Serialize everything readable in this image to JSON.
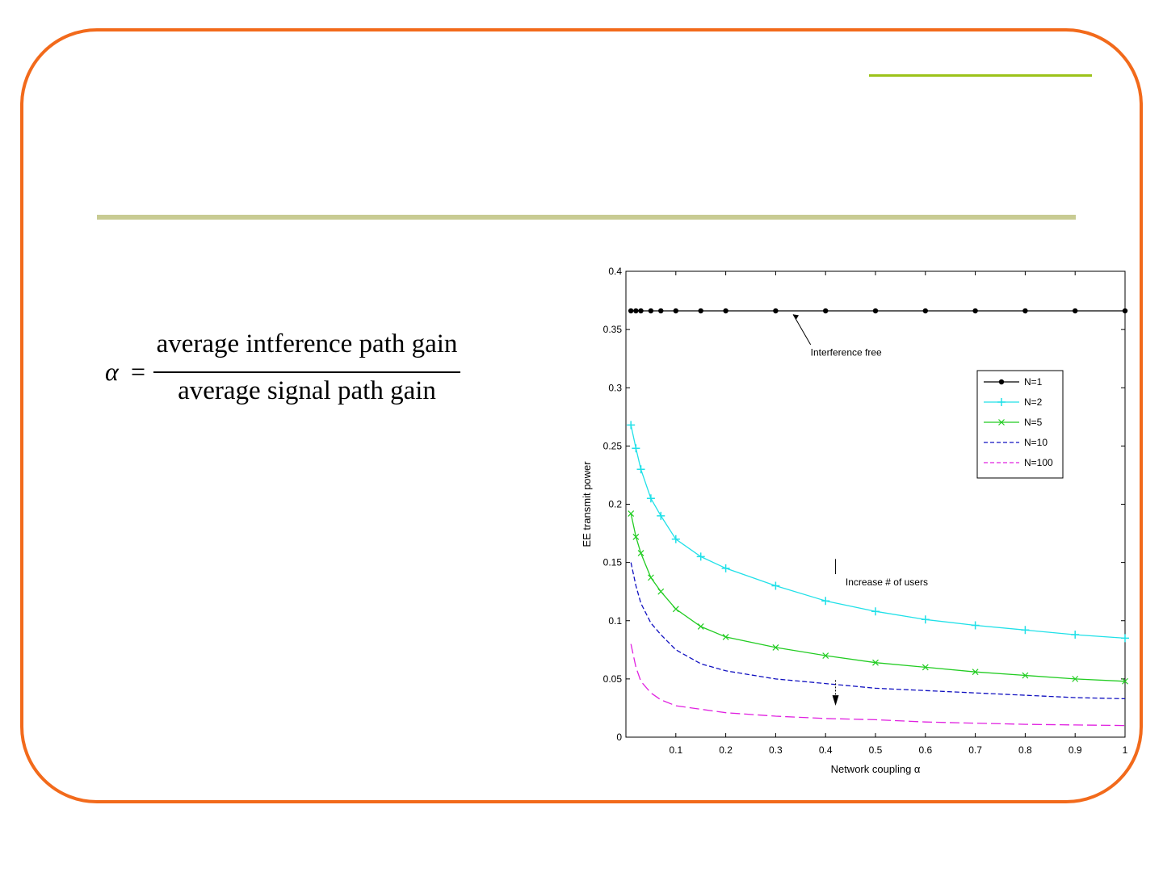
{
  "slide": {
    "frame_color": "#f26a1b",
    "accent_color": "#9cc31a",
    "rule_color": "#c8cb93"
  },
  "formula": {
    "lhs": "α",
    "equals": "=",
    "numerator": "average intference path gain",
    "denominator": "average signal path gain"
  },
  "chart_data": {
    "type": "line",
    "xlabel": "Network coupling α",
    "ylabel": "EE transmit power",
    "xlim": [
      0,
      1
    ],
    "ylim": [
      0,
      0.4
    ],
    "xticks": [
      0.1,
      0.2,
      0.3,
      0.4,
      0.5,
      0.6,
      0.7,
      0.8,
      0.9,
      1
    ],
    "xtick_labels": [
      "0.1",
      "0.2",
      "0.3",
      "0.4",
      "0.5",
      "0.6",
      "0.7",
      "0.8",
      "0.9",
      "1"
    ],
    "yticks": [
      0,
      0.05,
      0.1,
      0.15,
      0.2,
      0.25,
      0.3,
      0.35,
      0.4
    ],
    "ytick_labels": [
      "0",
      "0.05",
      "0.1",
      "0.15",
      "0.2",
      "0.25",
      "0.3",
      "0.35",
      "0.4"
    ],
    "legend_position": "top-right",
    "grid": false,
    "x": [
      0.01,
      0.02,
      0.03,
      0.05,
      0.07,
      0.1,
      0.15,
      0.2,
      0.3,
      0.4,
      0.5,
      0.6,
      0.7,
      0.8,
      0.9,
      1.0
    ],
    "series": [
      {
        "name": "N=1",
        "color": "#000000",
        "marker": "dot",
        "values": [
          0.366,
          0.366,
          0.366,
          0.366,
          0.366,
          0.366,
          0.366,
          0.366,
          0.366,
          0.366,
          0.366,
          0.366,
          0.366,
          0.366,
          0.366,
          0.366
        ]
      },
      {
        "name": "N=2",
        "color": "#20e0e8",
        "marker": "plus",
        "values": [
          0.268,
          0.248,
          0.23,
          0.205,
          0.19,
          0.17,
          0.155,
          0.145,
          0.13,
          0.117,
          0.108,
          0.101,
          0.096,
          0.092,
          0.088,
          0.085
        ]
      },
      {
        "name": "N=5",
        "color": "#22cc22",
        "marker": "x",
        "values": [
          0.192,
          0.172,
          0.158,
          0.137,
          0.125,
          0.11,
          0.095,
          0.086,
          0.077,
          0.07,
          0.064,
          0.06,
          0.056,
          0.053,
          0.05,
          0.048
        ]
      },
      {
        "name": "N=10",
        "color": "#1010c0",
        "marker": "none",
        "values": [
          0.15,
          0.13,
          0.115,
          0.098,
          0.088,
          0.075,
          0.063,
          0.057,
          0.05,
          0.046,
          0.042,
          0.04,
          0.038,
          0.036,
          0.034,
          0.033
        ]
      },
      {
        "name": "N=100",
        "color": "#e020e0",
        "marker": "none",
        "values": [
          0.08,
          0.06,
          0.048,
          0.038,
          0.032,
          0.027,
          0.024,
          0.021,
          0.018,
          0.016,
          0.015,
          0.013,
          0.012,
          0.011,
          0.0105,
          0.01
        ]
      }
    ],
    "annotations": [
      {
        "text": "Interference free",
        "x": 0.37,
        "y": 0.333
      },
      {
        "text": "Increase # of users",
        "x": 0.44,
        "y": 0.133
      }
    ]
  }
}
